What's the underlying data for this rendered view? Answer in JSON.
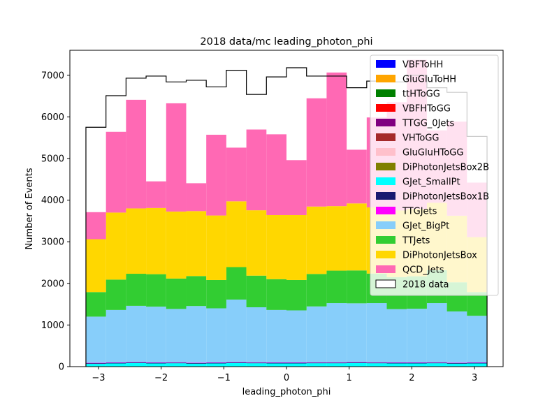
{
  "chart_data": {
    "type": "bar",
    "title": "2018 data/mc leading_photon_phi",
    "xlabel": "leading_photon_phi",
    "ylabel": "Number of Events",
    "xlim": [
      -3.456,
      3.456
    ],
    "ylim": [
      0,
      7600
    ],
    "xticks": [
      -3,
      -2,
      -1,
      0,
      1,
      2,
      3
    ],
    "xtick_labels": [
      "−3",
      "−2",
      "−1",
      "0",
      "1",
      "2",
      "3"
    ],
    "yticks": [
      0,
      1000,
      2000,
      3000,
      4000,
      5000,
      6000,
      7000
    ],
    "ytick_labels": [
      "0",
      "1000",
      "2000",
      "3000",
      "4000",
      "5000",
      "6000",
      "7000"
    ],
    "bin_edges": [
      -3.2,
      -2.88,
      -2.56,
      -2.24,
      -1.92,
      -1.6,
      -1.28,
      -0.96,
      -0.64,
      -0.32,
      0.0,
      0.32,
      0.64,
      0.96,
      1.28,
      1.6,
      1.92,
      2.24,
      2.56,
      2.88,
      3.2
    ],
    "legend_position": "top-right",
    "series": [
      {
        "name": "VBFToHH",
        "color": "#0000ff",
        "values": [
          0,
          0,
          0,
          0,
          0,
          0,
          0,
          0,
          0,
          0,
          0,
          0,
          0,
          0,
          0,
          0,
          0,
          0,
          0,
          0
        ]
      },
      {
        "name": "GluGluToHH",
        "color": "#ffa500",
        "values": [
          0,
          0,
          0,
          0,
          0,
          0,
          0,
          0,
          0,
          0,
          0,
          0,
          0,
          0,
          0,
          0,
          0,
          0,
          0,
          0
        ]
      },
      {
        "name": "ttHToGG",
        "color": "#008000",
        "values": [
          0,
          0,
          0,
          0,
          0,
          0,
          0,
          0,
          0,
          0,
          0,
          0,
          0,
          0,
          0,
          0,
          0,
          0,
          0,
          0
        ]
      },
      {
        "name": "VBFHToGG",
        "color": "#ff0000",
        "values": [
          0,
          0,
          0,
          0,
          0,
          0,
          0,
          0,
          0,
          0,
          0,
          0,
          0,
          0,
          0,
          0,
          0,
          0,
          0,
          0
        ]
      },
      {
        "name": "TTGG_0Jets",
        "color": "#800080",
        "values": [
          2,
          2,
          2,
          2,
          2,
          2,
          2,
          2,
          2,
          2,
          2,
          2,
          2,
          2,
          2,
          2,
          2,
          2,
          2,
          2
        ]
      },
      {
        "name": "VHToGG",
        "color": "#a52a2a",
        "values": [
          0,
          0,
          0,
          0,
          0,
          0,
          0,
          0,
          0,
          0,
          0,
          0,
          0,
          0,
          0,
          0,
          0,
          0,
          0,
          0
        ]
      },
      {
        "name": "GluGluHToGG",
        "color": "#ffc0cb",
        "values": [
          1,
          1,
          1,
          1,
          1,
          1,
          1,
          1,
          1,
          1,
          1,
          1,
          1,
          1,
          1,
          1,
          1,
          1,
          1,
          1
        ]
      },
      {
        "name": "DiPhotonJetsBox2B",
        "color": "#808000",
        "values": [
          3,
          3,
          3,
          3,
          3,
          3,
          3,
          3,
          3,
          3,
          3,
          3,
          3,
          3,
          3,
          3,
          3,
          3,
          3,
          3
        ]
      },
      {
        "name": "GJet_SmallPt",
        "color": "#00ffff",
        "values": [
          60,
          70,
          80,
          70,
          75,
          65,
          70,
          80,
          75,
          70,
          70,
          75,
          75,
          80,
          75,
          70,
          70,
          75,
          65,
          70
        ]
      },
      {
        "name": "DiPhotonJetsBox1B",
        "color": "#191970",
        "values": [
          15,
          15,
          15,
          15,
          15,
          15,
          15,
          15,
          15,
          15,
          15,
          15,
          15,
          15,
          15,
          15,
          15,
          15,
          15,
          15
        ]
      },
      {
        "name": "TTGJets",
        "color": "#ff00ff",
        "values": [
          10,
          10,
          10,
          10,
          10,
          10,
          10,
          10,
          10,
          10,
          10,
          10,
          10,
          10,
          10,
          10,
          10,
          10,
          10,
          10
        ]
      },
      {
        "name": "GJet_BigPt",
        "color": "#87cefa",
        "values": [
          1110,
          1260,
          1350,
          1340,
          1280,
          1360,
          1300,
          1500,
          1320,
          1260,
          1250,
          1340,
          1420,
          1410,
          1420,
          1280,
          1290,
          1420,
          1230,
          1120
        ]
      },
      {
        "name": "TTJets",
        "color": "#32cd32",
        "values": [
          590,
          730,
          770,
          780,
          730,
          720,
          680,
          780,
          760,
          740,
          730,
          780,
          780,
          790,
          710,
          770,
          780,
          790,
          700,
          570
        ]
      },
      {
        "name": "DiPhotonJetsBox",
        "color": "#ffd700",
        "values": [
          1270,
          1610,
          1570,
          1590,
          1610,
          1560,
          1550,
          1580,
          1570,
          1540,
          1560,
          1620,
          1550,
          1610,
          1590,
          1600,
          1620,
          1620,
          1600,
          1320
        ]
      },
      {
        "name": "QCD_Jets",
        "color": "#ff69b4",
        "values": [
          650,
          1940,
          2610,
          640,
          2600,
          670,
          1940,
          1290,
          1940,
          1940,
          1320,
          2600,
          3210,
          1290,
          2160,
          2600,
          3580,
          1740,
          2260,
          1310
        ]
      },
      {
        "name": "2018 data",
        "color": "#000000",
        "type": "step",
        "values": [
          5750,
          6510,
          6930,
          6980,
          6840,
          6880,
          6720,
          7120,
          6540,
          6960,
          7180,
          6980,
          6980,
          6700,
          6860,
          6840,
          7000,
          6700,
          6590,
          5530
        ]
      }
    ]
  }
}
